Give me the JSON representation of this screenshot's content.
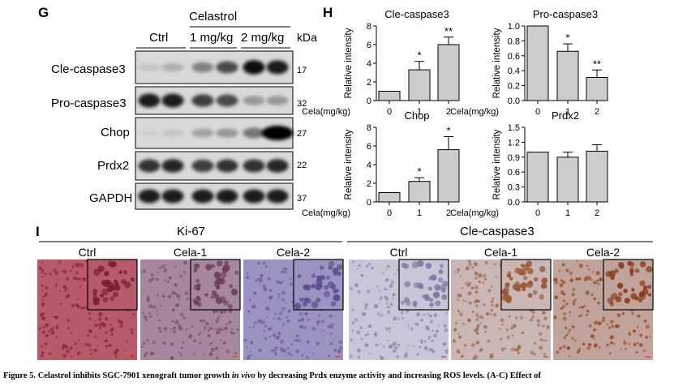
{
  "panel_g": {
    "letter": "G",
    "treatment": "Celastrol",
    "groups": [
      "Ctrl",
      "1 mg/kg",
      "2 mg/kg"
    ],
    "unit": "kDa",
    "blots": [
      {
        "name": "Cle-caspase3",
        "kda": "17",
        "intensity": [
          0.15,
          0.25,
          0.45,
          0.7,
          0.95,
          0.9
        ]
      },
      {
        "name": "Pro-caspase3",
        "kda": "32",
        "intensity": [
          0.9,
          0.9,
          0.75,
          0.7,
          0.35,
          0.35
        ]
      },
      {
        "name": "Chop",
        "kda": "27",
        "intensity": [
          0.1,
          0.15,
          0.3,
          0.35,
          0.5,
          1.0
        ]
      },
      {
        "name": "Prdx2",
        "kda": "22",
        "intensity": [
          0.8,
          0.85,
          0.75,
          0.8,
          0.8,
          0.85
        ]
      },
      {
        "name": "GAPDH",
        "kda": "37",
        "intensity": [
          0.9,
          0.9,
          0.9,
          0.9,
          0.9,
          0.9
        ]
      }
    ]
  },
  "panel_h": {
    "letter": "H"
  },
  "chart_data": [
    {
      "type": "bar",
      "title": "Cle-caspase3",
      "ylabel": "Relative intensity",
      "xlabel": "Cela(mg/kg)",
      "categories": [
        "0",
        "1",
        "2"
      ],
      "values": [
        1.0,
        3.3,
        6.0
      ],
      "errors": [
        0,
        0.9,
        0.8
      ],
      "significance": [
        "",
        "*",
        "**"
      ],
      "ylim": [
        0,
        8
      ],
      "yticks": [
        "0",
        "2",
        "4",
        "6",
        "8"
      ]
    },
    {
      "type": "bar",
      "title": "Pro-caspase3",
      "ylabel": "Relative intensity",
      "xlabel": "Cela(mg/kg)",
      "categories": [
        "0",
        "1",
        "2"
      ],
      "values": [
        1.0,
        0.66,
        0.31
      ],
      "errors": [
        0,
        0.1,
        0.1
      ],
      "significance": [
        "",
        "*",
        "**"
      ],
      "ylim": [
        0,
        1.0
      ],
      "yticks": [
        "0.0",
        "0.2",
        "0.4",
        "0.6",
        "0.8",
        "1.0"
      ]
    },
    {
      "type": "bar",
      "title": "Chop",
      "ylabel": "Relative intensity",
      "xlabel": "Cela(mg/kg)",
      "categories": [
        "0",
        "1",
        "2"
      ],
      "values": [
        1.0,
        2.2,
        5.6
      ],
      "errors": [
        0,
        0.4,
        1.4
      ],
      "significance": [
        "",
        "*",
        "*"
      ],
      "ylim": [
        0,
        8
      ],
      "yticks": [
        "0",
        "2",
        "4",
        "6",
        "8"
      ]
    },
    {
      "type": "bar",
      "title": "Prdx2",
      "ylabel": "Relative intensity",
      "xlabel": "Cela(mg/kg)",
      "categories": [
        "0",
        "1",
        "2"
      ],
      "values": [
        1.0,
        0.9,
        1.02
      ],
      "errors": [
        0,
        0.1,
        0.13
      ],
      "significance": [
        "",
        "",
        ""
      ],
      "ylim": [
        0,
        1.5
      ],
      "yticks": [
        "0.0",
        "0.3",
        "0.6",
        "0.9",
        "1.2",
        "1.5"
      ]
    }
  ],
  "panel_i": {
    "letter": "I",
    "sections": [
      {
        "title": "Ki-67",
        "images": [
          {
            "label": "Ctrl",
            "bg": "#b85a6a",
            "dot": "#8a2a3c",
            "inset_dot": "#7a1e30"
          },
          {
            "label": "Cela-1",
            "bg": "#a7879e",
            "dot": "#7b4f6c",
            "inset_dot": "#6a3a5a"
          },
          {
            "label": "Cela-2",
            "bg": "#9c93c2",
            "dot": "#6f5f9e",
            "inset_dot": "#5a4c8c"
          }
        ]
      },
      {
        "title": "Cle-caspase3",
        "images": [
          {
            "label": "Ctrl",
            "bg": "#c9c6d8",
            "dot": "#8f8aac",
            "inset_dot": "#7e79a0"
          },
          {
            "label": "Cela-1",
            "bg": "#c9b7b6",
            "dot": "#a06a4a",
            "inset_dot": "#9a5530"
          },
          {
            "label": "Cela-2",
            "bg": "#c0a49c",
            "dot": "#9a4a22",
            "inset_dot": "#8a3a18"
          }
        ]
      }
    ]
  },
  "caption": {
    "figure": "Figure 5.",
    "text_before": "Celastrol inhibits SGC-7901 xenograft tumor growth",
    "italic": "in vivo",
    "text_after": "by decreasing Prdx enzyme activity and increasing ROS levels. (",
    "ref": "A-C",
    "tail": ") Effect of"
  }
}
